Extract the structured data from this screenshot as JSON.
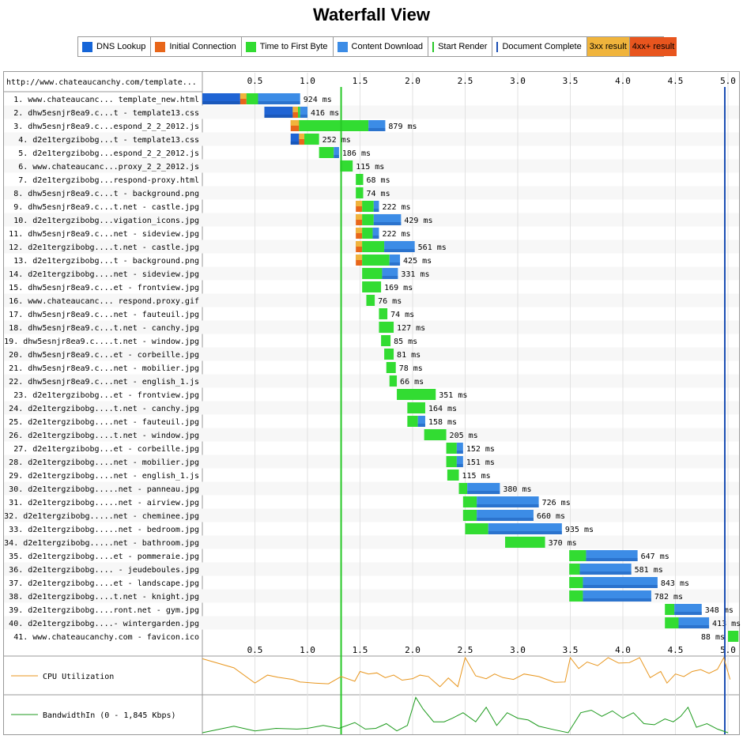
{
  "title": "Waterfall View",
  "legend": [
    {
      "label": "DNS Lookup",
      "color": "#1565d8",
      "kind": "swatch"
    },
    {
      "label": "Initial Connection",
      "color": "#e8661a",
      "kind": "swatch"
    },
    {
      "label": "Time to First Byte",
      "color": "#32dc32",
      "kind": "swatch"
    },
    {
      "label": "Content Download",
      "color": "#3c8ce6",
      "kind": "swatch"
    },
    {
      "label": "Start Render",
      "color": "#28c828",
      "kind": "line"
    },
    {
      "label": "Document Complete",
      "color": "#1c4fb4",
      "kind": "line"
    },
    {
      "label": "3xx result",
      "color": "#f0b43c",
      "kind": "bg"
    },
    {
      "label": "4xx+ result",
      "color": "#e8551e",
      "kind": "bg"
    }
  ],
  "page_url": "http://www.chateaucanchy.com/template...",
  "cpu_label": "CPU Utilization",
  "bandwidth_label": "BandwidthIn (0 - 1,845 Kbps)",
  "chart_data": {
    "type": "waterfall",
    "xlabel": "",
    "xlim": [
      0,
      5.05
    ],
    "x_ticks": [
      "0.5",
      "1.0",
      "1.5",
      "2.0",
      "2.5",
      "3.0",
      "3.5",
      "4.0",
      "4.5",
      "5.0"
    ],
    "start_render": 1.32,
    "document_complete": 4.97,
    "rows": [
      {
        "label": "1. www.chateaucanc... template_new.html",
        "ms": "924 ms",
        "dns": [
          0.0,
          0.36
        ],
        "conn": [
          0.36,
          0.42
        ],
        "ttfb": [
          0.42,
          0.53
        ],
        "dl": [
          0.53,
          0.93
        ]
      },
      {
        "label": "2. dhw5esnjr8ea9.c...t - template13.css",
        "ms": "416 ms",
        "dns": [
          0.59,
          0.86
        ],
        "conn": [
          0.86,
          0.91
        ],
        "ttfb": [
          0.91,
          0.93
        ],
        "dl": [
          0.93,
          1.0
        ]
      },
      {
        "label": "3. dhw5esnjr8ea9.c...espond_2_2_2012.js",
        "ms": "879 ms",
        "conn": [
          0.84,
          0.92
        ],
        "ttfb": [
          0.92,
          1.58
        ],
        "dl": [
          1.58,
          1.74
        ]
      },
      {
        "label": "4. d2e1tergzibobg...t - template13.css",
        "ms": "252 ms",
        "dns": [
          0.84,
          0.92
        ],
        "conn": [
          0.92,
          0.97
        ],
        "ttfb": [
          0.97,
          1.11
        ]
      },
      {
        "label": "5. d2e1tergzibobg...espond_2_2_2012.js",
        "ms": "186 ms",
        "ttfb": [
          1.11,
          1.25
        ],
        "dl": [
          1.25,
          1.3
        ]
      },
      {
        "label": "6. www.chateaucanc...proxy_2_2_2012.js",
        "ms": "115 ms",
        "ttfb": [
          1.31,
          1.43
        ]
      },
      {
        "label": "7. d2e1tergzibobg...respond-proxy.html",
        "ms": "68 ms",
        "ttfb": [
          1.46,
          1.53
        ]
      },
      {
        "label": "8. dhw5esnjr8ea9.c...t - background.png",
        "ms": "74 ms",
        "ttfb": [
          1.46,
          1.53
        ]
      },
      {
        "label": "9. dhw5esnjr8ea9.c...t.net - castle.jpg",
        "ms": "222 ms",
        "conn": [
          1.46,
          1.52
        ],
        "ttfb": [
          1.52,
          1.63
        ],
        "dl": [
          1.63,
          1.68
        ]
      },
      {
        "label": "10. d2e1tergzibobg...vigation_icons.jpg",
        "ms": "429 ms",
        "conn": [
          1.46,
          1.52
        ],
        "ttfb": [
          1.52,
          1.63
        ],
        "dl": [
          1.63,
          1.89
        ]
      },
      {
        "label": "11. dhw5esnjr8ea9.c...net - sideview.jpg",
        "ms": "222 ms",
        "conn": [
          1.46,
          1.52
        ],
        "ttfb": [
          1.52,
          1.62
        ],
        "dl": [
          1.62,
          1.68
        ]
      },
      {
        "label": "12. d2e1tergzibobg....t.net - castle.jpg",
        "ms": "561 ms",
        "conn": [
          1.46,
          1.52
        ],
        "ttfb": [
          1.52,
          1.73
        ],
        "dl": [
          1.73,
          2.02
        ]
      },
      {
        "label": "13. d2e1tergzibobg...t - background.png",
        "ms": "425 ms",
        "conn": [
          1.46,
          1.52
        ],
        "ttfb": [
          1.52,
          1.78
        ],
        "dl": [
          1.78,
          1.88
        ]
      },
      {
        "label": "14. d2e1tergzibobg....net - sideview.jpg",
        "ms": "331 ms",
        "ttfb": [
          1.52,
          1.71
        ],
        "dl": [
          1.71,
          1.86
        ]
      },
      {
        "label": "15. dhw5esnjr8ea9.c...et - frontview.jpg",
        "ms": "169 ms",
        "ttfb": [
          1.52,
          1.7
        ]
      },
      {
        "label": "16. www.chateaucanc... respond.proxy.gif",
        "ms": "76 ms",
        "ttfb": [
          1.56,
          1.64
        ]
      },
      {
        "label": "17. dhw5esnjr8ea9.c...net - fauteuil.jpg",
        "ms": "74 ms",
        "ttfb": [
          1.68,
          1.76
        ]
      },
      {
        "label": "18. dhw5esnjr8ea9.c...t.net - canchy.jpg",
        "ms": "127 ms",
        "ttfb": [
          1.68,
          1.82
        ]
      },
      {
        "label": "19. dhw5esnjr8ea9.c....t.net - window.jpg",
        "ms": "85 ms",
        "ttfb": [
          1.7,
          1.79
        ]
      },
      {
        "label": "20. dhw5esnjr8ea9.c...et - corbeille.jpg",
        "ms": "81 ms",
        "ttfb": [
          1.73,
          1.82
        ]
      },
      {
        "label": "21. dhw5esnjr8ea9.c...net - mobilier.jpg",
        "ms": "78 ms",
        "ttfb": [
          1.75,
          1.84
        ]
      },
      {
        "label": "22. dhw5esnjr8ea9.c...net - english_1.js",
        "ms": "66 ms",
        "ttfb": [
          1.78,
          1.85
        ]
      },
      {
        "label": "23. d2e1tergzibobg...et - frontview.jpg",
        "ms": "351 ms",
        "ttfb": [
          1.85,
          2.22
        ]
      },
      {
        "label": "24. d2e1tergzibobg....t.net - canchy.jpg",
        "ms": "164 ms",
        "ttfb": [
          1.95,
          2.12
        ]
      },
      {
        "label": "25. d2e1tergzibobg....net - fauteuil.jpg",
        "ms": "158 ms",
        "ttfb": [
          1.95,
          2.05
        ],
        "dl": [
          2.05,
          2.12
        ]
      },
      {
        "label": "26. d2e1tergzibobg....t.net - window.jpg",
        "ms": "205 ms",
        "ttfb": [
          2.11,
          2.32
        ]
      },
      {
        "label": "27. d2e1tergzibobg...et - corbeille.jpg",
        "ms": "152 ms",
        "ttfb": [
          2.32,
          2.42
        ],
        "dl": [
          2.42,
          2.48
        ]
      },
      {
        "label": "28. d2e1tergzibobg....net - mobilier.jpg",
        "ms": "151 ms",
        "ttfb": [
          2.32,
          2.42
        ],
        "dl": [
          2.42,
          2.48
        ]
      },
      {
        "label": "29. d2e1tergzibobg....net - english_1.js",
        "ms": "115 ms",
        "ttfb": [
          2.33,
          2.44
        ]
      },
      {
        "label": "30. d2e1tergzibobg.....net - panneau.jpg",
        "ms": "380 ms",
        "ttfb": [
          2.44,
          2.52
        ],
        "dl": [
          2.52,
          2.83
        ]
      },
      {
        "label": "31. d2e1tergzibobg.....net - airview.jpg",
        "ms": "726 ms",
        "ttfb": [
          2.48,
          2.61
        ],
        "dl": [
          2.61,
          3.2
        ]
      },
      {
        "label": "32. d2e1tergzibobg.....net - cheminee.jpg",
        "ms": "660 ms",
        "ttfb": [
          2.48,
          2.61
        ],
        "dl": [
          2.61,
          3.15
        ]
      },
      {
        "label": "33. d2e1tergzibobg.....net - bedroom.jpg",
        "ms": "935 ms",
        "ttfb": [
          2.5,
          2.72
        ],
        "dl": [
          2.72,
          3.42
        ]
      },
      {
        "label": "34. d2e1tergzibobg.....net - bathroom.jpg",
        "ms": "370 ms",
        "ttfb": [
          2.88,
          3.26
        ]
      },
      {
        "label": "35. d2e1tergzibobg....et - pommeraie.jpg",
        "ms": "647 ms",
        "ttfb": [
          3.49,
          3.65
        ],
        "dl": [
          3.65,
          4.14
        ]
      },
      {
        "label": "36. d2e1tergzibobg.... - jeudeboules.jpg",
        "ms": "581 ms",
        "ttfb": [
          3.49,
          3.59
        ],
        "dl": [
          3.59,
          4.08
        ]
      },
      {
        "label": "37. d2e1tergzibobg....et - landscape.jpg",
        "ms": "843 ms",
        "ttfb": [
          3.49,
          3.62
        ],
        "dl": [
          3.62,
          4.33
        ]
      },
      {
        "label": "38. d2e1tergzibobg....t.net - knight.jpg",
        "ms": "782 ms",
        "ttfb": [
          3.49,
          3.62
        ],
        "dl": [
          3.62,
          4.27
        ]
      },
      {
        "label": "39. d2e1tergzibobg....ront.net - gym.jpg",
        "ms": "348 ms",
        "ttfb": [
          4.4,
          4.49
        ],
        "dl": [
          4.49,
          4.75
        ]
      },
      {
        "label": "40. d2e1tergzibobg....- wintergarden.jpg",
        "ms": "413 ms",
        "ttfb": [
          4.4,
          4.53
        ],
        "dl": [
          4.53,
          4.82
        ]
      },
      {
        "label": "41. www.chateaucanchy.com - favicon.ico",
        "ms": "88 ms",
        "ttfb": [
          5.0,
          5.1
        ],
        "ms_left": true
      }
    ],
    "cpu": {
      "x": [
        0,
        0.3,
        0.5,
        0.62,
        0.72,
        0.86,
        0.93,
        1.07,
        1.2,
        1.32,
        1.45,
        1.5,
        1.58,
        1.66,
        1.74,
        1.82,
        1.9,
        2.0,
        2.07,
        2.15,
        2.26,
        2.34,
        2.43,
        2.5,
        2.6,
        2.7,
        2.78,
        2.86,
        2.96,
        3.06,
        3.2,
        3.35,
        3.45,
        3.5,
        3.58,
        3.66,
        3.76,
        3.86,
        3.96,
        4.06,
        4.16,
        4.26,
        4.36,
        4.42,
        4.5,
        4.58,
        4.66,
        4.74,
        4.82,
        4.9,
        4.96,
        5.02
      ],
      "y": [
        97,
        72,
        30,
        52,
        46,
        40,
        33,
        30,
        28,
        48,
        35,
        62,
        55,
        58,
        45,
        52,
        38,
        42,
        52,
        48,
        20,
        44,
        20,
        100,
        50,
        42,
        55,
        45,
        40,
        55,
        48,
        32,
        33,
        100,
        70,
        88,
        78,
        100,
        85,
        86,
        100,
        45,
        62,
        30,
        55,
        48,
        62,
        67,
        57,
        68,
        100,
        40
      ]
    },
    "bandwidth": {
      "x": [
        0,
        0.3,
        0.5,
        0.7,
        0.9,
        1.0,
        1.15,
        1.3,
        1.45,
        1.55,
        1.65,
        1.75,
        1.85,
        1.95,
        2.03,
        2.1,
        2.2,
        2.3,
        2.38,
        2.48,
        2.6,
        2.7,
        2.8,
        2.9,
        3.0,
        3.1,
        3.2,
        3.35,
        3.48,
        3.6,
        3.7,
        3.8,
        3.9,
        4.0,
        4.1,
        4.2,
        4.3,
        4.4,
        4.48,
        4.55,
        4.62,
        4.7,
        4.8,
        4.9,
        5.0
      ],
      "y": [
        0,
        18,
        5,
        12,
        10,
        12,
        20,
        12,
        28,
        10,
        12,
        25,
        5,
        20,
        97,
        65,
        30,
        30,
        40,
        55,
        30,
        70,
        20,
        55,
        40,
        35,
        18,
        8,
        0,
        55,
        62,
        45,
        60,
        40,
        55,
        25,
        22,
        38,
        30,
        45,
        70,
        15,
        25,
        10,
        0
      ]
    }
  }
}
